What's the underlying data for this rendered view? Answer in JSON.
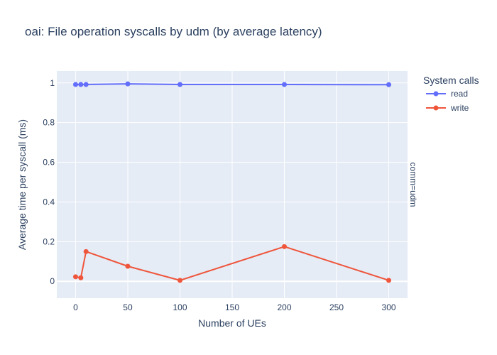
{
  "chart_data": {
    "type": "line",
    "title": "oai: File operation syscalls by udm (by average latency)",
    "xlabel": "Number of UEs",
    "ylabel": "Average time per syscall (ms)",
    "facet_label": "comm=udm",
    "legend_title": "System calls",
    "legend_position": "top-right",
    "grid": true,
    "x": [
      0,
      5,
      10,
      50,
      100,
      200,
      300
    ],
    "xlim": [
      -18,
      318
    ],
    "ylim": [
      -0.085,
      1.06
    ],
    "x_ticks": [
      0,
      50,
      100,
      150,
      200,
      250,
      300
    ],
    "y_ticks": [
      0,
      0.2,
      0.4,
      0.6,
      0.8,
      1
    ],
    "x_tick_labels": [
      "0",
      "50",
      "100",
      "150",
      "200",
      "250",
      "300"
    ],
    "y_tick_labels": [
      "0",
      "0.2",
      "0.4",
      "0.6",
      "0.8",
      "1"
    ],
    "series": [
      {
        "name": "read",
        "color": "#636efa",
        "values": [
          0.992,
          0.992,
          0.992,
          0.995,
          0.992,
          0.992,
          0.991
        ]
      },
      {
        "name": "write",
        "color": "#ef553b",
        "values": [
          0.023,
          0.018,
          0.15,
          0.076,
          0.005,
          0.175,
          0.005
        ]
      }
    ]
  }
}
